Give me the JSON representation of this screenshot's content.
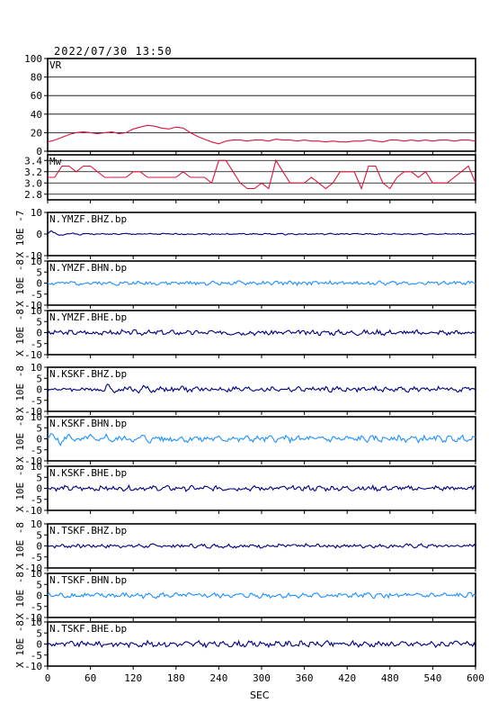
{
  "timestamp": "2022/07/30  13:50",
  "xlabel": "SEC",
  "colors": {
    "vr": "#dc143c",
    "mw": "#dc143c",
    "dark": "#000080",
    "light": "#1e90ff",
    "grid": "#000000"
  },
  "chart_data": [
    {
      "type": "line",
      "title": "VR",
      "ylim": [
        0,
        100
      ],
      "yticks": [
        "100",
        "80",
        "60",
        "40",
        "20",
        "0"
      ],
      "grid": true,
      "x": [
        0,
        10,
        20,
        30,
        40,
        50,
        60,
        70,
        80,
        90,
        100,
        110,
        120,
        130,
        140,
        150,
        160,
        170,
        180,
        190,
        200,
        210,
        220,
        230,
        240,
        250,
        260,
        270,
        280,
        290,
        300,
        310,
        320,
        330,
        340,
        350,
        360,
        370,
        380,
        390,
        400,
        410,
        420,
        430,
        440,
        450,
        460,
        470,
        480,
        490,
        500,
        510,
        520,
        530,
        540,
        550,
        560,
        570,
        580,
        590,
        600
      ],
      "values": [
        10,
        12,
        15,
        18,
        20,
        21,
        20,
        19,
        20,
        21,
        19,
        20,
        24,
        26,
        28,
        27,
        25,
        24,
        26,
        25,
        20,
        16,
        13,
        10,
        8,
        11,
        12,
        12,
        11,
        12,
        12,
        11,
        13,
        12,
        12,
        11,
        12,
        11,
        11,
        10,
        11,
        10,
        10,
        11,
        11,
        12,
        11,
        10,
        12,
        12,
        11,
        12,
        11,
        12,
        11,
        12,
        12,
        11,
        12,
        12,
        11
      ]
    },
    {
      "type": "line",
      "title": "Mw",
      "ylim": [
        2.7,
        3.5
      ],
      "yticks": [
        "3.4",
        "3.2",
        "3.0",
        "2.8"
      ],
      "grid": true,
      "x": [
        0,
        10,
        20,
        30,
        40,
        50,
        60,
        70,
        80,
        90,
        100,
        110,
        120,
        130,
        140,
        150,
        160,
        170,
        180,
        190,
        200,
        210,
        220,
        230,
        240,
        250,
        260,
        270,
        280,
        290,
        300,
        310,
        320,
        330,
        340,
        350,
        360,
        370,
        380,
        390,
        400,
        410,
        420,
        430,
        440,
        450,
        460,
        470,
        480,
        490,
        500,
        510,
        520,
        530,
        540,
        550,
        560,
        570,
        580,
        590,
        600
      ],
      "values": [
        3.1,
        3.1,
        3.3,
        3.3,
        3.2,
        3.3,
        3.3,
        3.2,
        3.1,
        3.1,
        3.1,
        3.1,
        3.2,
        3.2,
        3.1,
        3.1,
        3.1,
        3.1,
        3.1,
        3.2,
        3.1,
        3.1,
        3.1,
        3.0,
        3.4,
        3.4,
        3.2,
        3.0,
        2.9,
        2.9,
        3.0,
        2.9,
        3.4,
        3.2,
        3.0,
        3.0,
        3.0,
        3.1,
        3.0,
        2.9,
        3.0,
        3.2,
        3.2,
        3.2,
        2.9,
        3.3,
        3.3,
        3.0,
        2.9,
        3.1,
        3.2,
        3.2,
        3.1,
        3.2,
        3.0,
        3.0,
        3.0,
        3.1,
        3.2,
        3.3,
        3.0
      ]
    },
    {
      "type": "line",
      "title": "N.YMZF.BHZ.bp",
      "ylabel": "X 10E -7",
      "ylim": [
        -10,
        10
      ],
      "yticks": [
        "10",
        "0",
        "-10"
      ],
      "color": "dark",
      "amp": 0.25,
      "seed": 1,
      "onset": {
        "x": 0,
        "peak": 1.5,
        "decay": 25
      }
    },
    {
      "type": "line",
      "title": "N.YMZF.BHN.bp",
      "ylabel": "X 10E -8",
      "ylim": [
        -10,
        10
      ],
      "yticks": [
        "10",
        "5",
        "0",
        "-5",
        "-10"
      ],
      "color": "light",
      "amp": 0.7,
      "seed": 2
    },
    {
      "type": "line",
      "title": "N.YMZF.BHE.bp",
      "ylabel": "X 10E -8",
      "ylim": [
        -10,
        10
      ],
      "yticks": [
        "10",
        "5",
        "0",
        "-5",
        "-10"
      ],
      "color": "dark",
      "amp": 0.9,
      "seed": 3
    },
    {
      "type": "line",
      "title": "N.KSKF.BHZ.bp",
      "ylabel": "X 10E -8",
      "ylim": [
        -10,
        10
      ],
      "yticks": [
        "10",
        "5",
        "0",
        "-5",
        "-10"
      ],
      "color": "dark",
      "amp": 0.9,
      "seed": 4,
      "onset": {
        "x": 80,
        "peak": 1.6,
        "decay": 70
      }
    },
    {
      "type": "line",
      "title": "N.KSKF.BHN.bp",
      "ylabel": "X 10E -8",
      "ylim": [
        -10,
        10
      ],
      "yticks": [
        "10",
        "5",
        "0",
        "-5",
        "-10"
      ],
      "color": "light",
      "amp": 1.1,
      "seed": 5,
      "onset": {
        "x": 0,
        "peak": 1.8,
        "decay": 120
      }
    },
    {
      "type": "line",
      "title": "N.KSKF.BHE.bp",
      "ylabel": "X 10E -8",
      "ylim": [
        -10,
        10
      ],
      "yticks": [
        "10",
        "5",
        "0",
        "-5",
        "-10"
      ],
      "color": "dark",
      "amp": 0.9,
      "seed": 6
    },
    {
      "type": "line",
      "title": "N.TSKF.BHZ.bp",
      "ylabel": "X 10E -8",
      "ylim": [
        -10,
        10
      ],
      "yticks": [
        "10",
        "5",
        "0",
        "-5",
        "-10"
      ],
      "color": "dark",
      "amp": 0.7,
      "seed": 7
    },
    {
      "type": "line",
      "title": "N.TSKF.BHN.bp",
      "ylabel": "X 10E -8",
      "ylim": [
        -10,
        10
      ],
      "yticks": [
        "10",
        "5",
        "0",
        "-5",
        "-10"
      ],
      "color": "light",
      "amp": 0.9,
      "seed": 8
    },
    {
      "type": "line",
      "title": "N.TSKF.BHE.bp",
      "ylabel": "X 10E -8",
      "ylim": [
        -10,
        10
      ],
      "yticks": [
        "10",
        "5",
        "0",
        "-5",
        "-10"
      ],
      "color": "dark",
      "amp": 1.0,
      "seed": 9
    }
  ],
  "xaxis": {
    "xlim": [
      0,
      600
    ],
    "ticks": [
      "0",
      "60",
      "120",
      "180",
      "240",
      "300",
      "360",
      "420",
      "480",
      "540",
      "600"
    ]
  }
}
